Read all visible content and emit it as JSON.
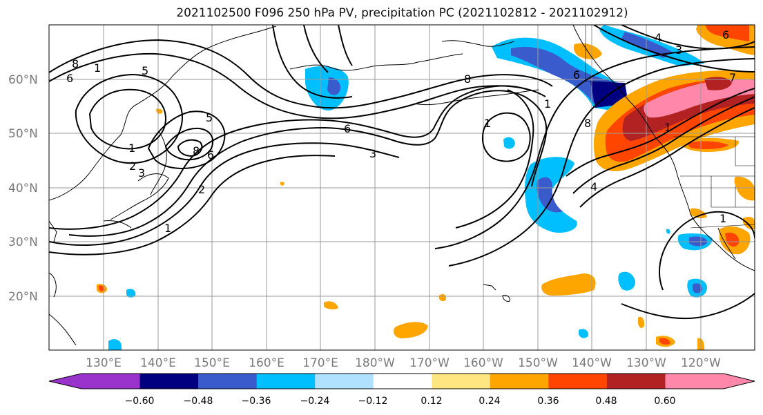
{
  "title": "2021102500 F096 250 hPa PV, precipitation PC (2021102812 - 2021102912)",
  "lat_labels": [
    "60°N",
    "50°N",
    "40°N",
    "30°N",
    "20°N"
  ],
  "lon_labels": [
    "130°E",
    "140°E",
    "150°E",
    "160°E",
    "170°E",
    "180°W",
    "170°W",
    "160°W",
    "150°W",
    "140°W",
    "130°W",
    "120°W"
  ],
  "colorbar": {
    "ticks": [
      "−0.60",
      "−0.48",
      "−0.36",
      "−0.24",
      "−0.12",
      "0.12",
      "0.24",
      "0.36",
      "0.48",
      "0.60"
    ],
    "colors": [
      "#9933cc",
      "#000080",
      "#3a5bcc",
      "#00bfff",
      "#b0e2ff",
      "#ffffff",
      "#ffe680",
      "#ffa500",
      "#ff4500",
      "#b22222",
      "#ff88aa"
    ]
  },
  "contour_labels": [
    "8",
    "1",
    "5",
    "6",
    "1",
    "2",
    "3",
    "8",
    "6",
    "5",
    "2",
    "1",
    "6",
    "3",
    "8",
    "1",
    "1",
    "6",
    "4",
    "8",
    "1",
    "4",
    "3",
    "6",
    "7",
    "1"
  ]
}
